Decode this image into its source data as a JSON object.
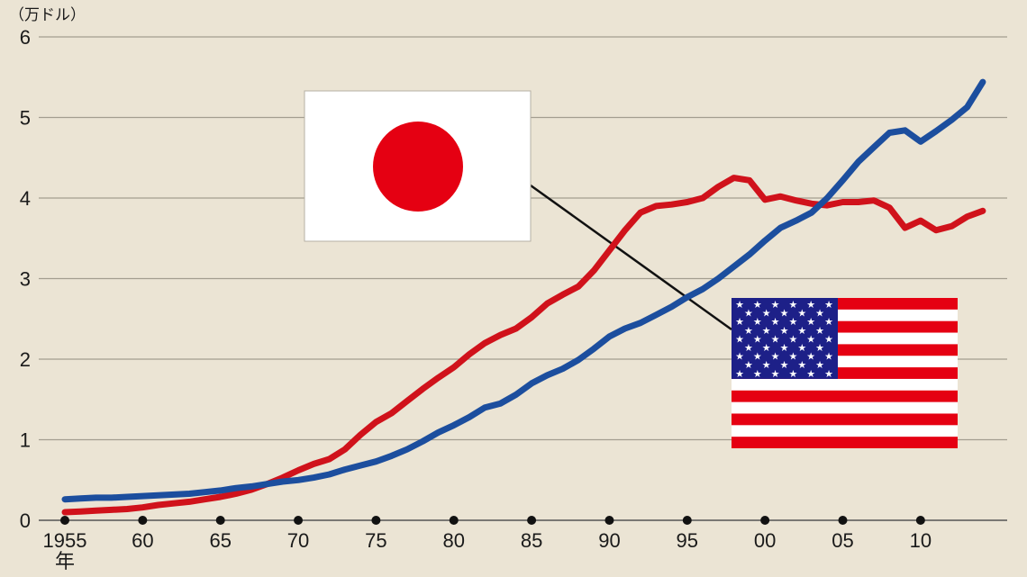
{
  "chart_data": {
    "type": "line",
    "title": "",
    "ylabel": "（万ドル）",
    "xlabel_suffix": "年",
    "ylim": [
      0,
      6
    ],
    "yticks": [
      0,
      1,
      2,
      3,
      4,
      5,
      6
    ],
    "xlim": [
      1955,
      2014
    ],
    "xticks": [
      1955,
      1960,
      1965,
      1970,
      1975,
      1980,
      1985,
      1990,
      1995,
      2000,
      2005,
      2010
    ],
    "xtick_labels": [
      "1955",
      "60",
      "65",
      "70",
      "75",
      "80",
      "85",
      "90",
      "95",
      "00",
      "05",
      "10"
    ],
    "grid": true,
    "x": [
      1955,
      1956,
      1957,
      1958,
      1959,
      1960,
      1961,
      1962,
      1963,
      1964,
      1965,
      1966,
      1967,
      1968,
      1969,
      1970,
      1971,
      1972,
      1973,
      1974,
      1975,
      1976,
      1977,
      1978,
      1979,
      1980,
      1981,
      1982,
      1983,
      1984,
      1985,
      1986,
      1987,
      1988,
      1989,
      1990,
      1991,
      1992,
      1993,
      1994,
      1995,
      1996,
      1997,
      1998,
      1999,
      2000,
      2001,
      2002,
      2003,
      2004,
      2005,
      2006,
      2007,
      2008,
      2009,
      2010,
      2011,
      2012,
      2013,
      2014
    ],
    "series": [
      {
        "flag": "japan-flag",
        "color": "#d0121b",
        "values": [
          0.1,
          0.11,
          0.12,
          0.13,
          0.14,
          0.16,
          0.19,
          0.21,
          0.23,
          0.26,
          0.29,
          0.33,
          0.38,
          0.45,
          0.53,
          0.62,
          0.7,
          0.76,
          0.88,
          1.06,
          1.22,
          1.33,
          1.48,
          1.63,
          1.77,
          1.9,
          2.06,
          2.2,
          2.3,
          2.38,
          2.52,
          2.69,
          2.8,
          2.9,
          3.1,
          3.35,
          3.6,
          3.82,
          3.9,
          3.92,
          3.95,
          4.0,
          4.14,
          4.25,
          4.22,
          3.98,
          4.02,
          3.97,
          3.93,
          3.91,
          3.95,
          3.95,
          3.97,
          3.88,
          3.63,
          3.72,
          3.6,
          3.65,
          3.77,
          3.84
        ]
      },
      {
        "flag": "usa-flag",
        "color": "#1c4e9e",
        "values": [
          0.26,
          0.27,
          0.28,
          0.28,
          0.29,
          0.3,
          0.31,
          0.32,
          0.33,
          0.35,
          0.37,
          0.4,
          0.42,
          0.45,
          0.48,
          0.5,
          0.53,
          0.57,
          0.63,
          0.68,
          0.73,
          0.8,
          0.88,
          0.98,
          1.09,
          1.18,
          1.28,
          1.4,
          1.45,
          1.56,
          1.7,
          1.8,
          1.88,
          1.99,
          2.13,
          2.28,
          2.38,
          2.45,
          2.55,
          2.65,
          2.77,
          2.87,
          3.0,
          3.15,
          3.3,
          3.47,
          3.63,
          3.72,
          3.82,
          4.0,
          4.22,
          4.45,
          4.63,
          4.81,
          4.84,
          4.7,
          4.83,
          4.97,
          5.13,
          5.44
        ]
      }
    ],
    "background": "#ebe4d4",
    "gridColor": "#a39d8f"
  }
}
